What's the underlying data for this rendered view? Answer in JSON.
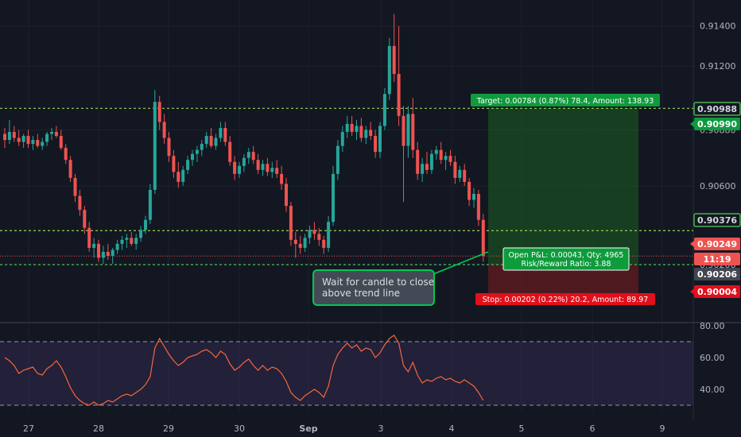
{
  "chart_data": {
    "type": "candlestick",
    "price_axis": {
      "range": [
        0.8992,
        0.9153
      ],
      "ticks": [
        "0.91400",
        "0.91200",
        "0.90880",
        "0.90600",
        "0.90206"
      ],
      "tick_values": [
        0.914,
        0.912,
        0.9088,
        0.906,
        0.90206
      ]
    },
    "x_axis": {
      "labels": [
        "27",
        "28",
        "29",
        "30",
        "Sep",
        "3",
        "4",
        "5",
        "6",
        "9"
      ]
    },
    "price_tags": [
      {
        "label": "0.90988",
        "value": 0.90988,
        "style": "outline",
        "color": "#4caf50"
      },
      {
        "label": "0.90990",
        "value": 0.9099,
        "style": "solid",
        "color": "#0e9b3c"
      },
      {
        "label": "0.90376",
        "value": 0.90376,
        "style": "outline",
        "color": "#4caf50"
      },
      {
        "label": "0.90249",
        "value": 0.90249,
        "style": "solid",
        "color": "#ef5350"
      },
      {
        "label": "11:19",
        "value": 0.9017,
        "style": "solid",
        "color": "#ef5350"
      },
      {
        "label": "0.90206",
        "value": 0.90206,
        "style": "solid",
        "color": "#434651"
      },
      {
        "label": "0.90004",
        "value": 0.90004,
        "style": "solid",
        "color": "#e0101c"
      }
    ],
    "levels": [
      {
        "value": 0.90988,
        "color": "#8bc34a"
      },
      {
        "value": 0.90376,
        "color": "#8bc34a"
      },
      {
        "value": 0.90206,
        "color": "#4caf50"
      }
    ],
    "last_price_value": 0.90249,
    "position": {
      "entry": 0.90206,
      "target": 0.9099,
      "stop": 0.90004,
      "target_label": "Target: 0.00784 (0.87%) 78.4, Amount: 138.93",
      "stop_label": "Stop: 0.00202 (0.22%) 20.2, Amount: 89.97",
      "pnl_label": "Open P&L: 0.00043, Qty: 4965",
      "rr_label": "Risk/Reward Ratio: 3.88"
    },
    "annotation": {
      "line1": "Wait for candle to close",
      "line2": "above trend line"
    },
    "candles": [
      [
        0.9086,
        0.9089,
        0.9079,
        0.9083
      ],
      [
        0.9083,
        0.9093,
        0.9081,
        0.9087
      ],
      [
        0.9087,
        0.909,
        0.9082,
        0.9084
      ],
      [
        0.9084,
        0.9088,
        0.908,
        0.9082
      ],
      [
        0.9082,
        0.9086,
        0.9079,
        0.9085
      ],
      [
        0.9085,
        0.9088,
        0.9079,
        0.9081
      ],
      [
        0.9081,
        0.9085,
        0.9078,
        0.9083
      ],
      [
        0.9083,
        0.9086,
        0.9079,
        0.908
      ],
      [
        0.908,
        0.9084,
        0.9078,
        0.9082
      ],
      [
        0.9082,
        0.9087,
        0.908,
        0.9086
      ],
      [
        0.9086,
        0.9089,
        0.9083,
        0.9087
      ],
      [
        0.9087,
        0.909,
        0.9084,
        0.9085
      ],
      [
        0.9085,
        0.9088,
        0.9078,
        0.9079
      ],
      [
        0.9079,
        0.9081,
        0.9071,
        0.9073
      ],
      [
        0.9073,
        0.9075,
        0.9062,
        0.9064
      ],
      [
        0.9064,
        0.9066,
        0.9052,
        0.9055
      ],
      [
        0.9055,
        0.9058,
        0.9045,
        0.9048
      ],
      [
        0.9048,
        0.905,
        0.9036,
        0.9039
      ],
      [
        0.9039,
        0.9042,
        0.9027,
        0.9029
      ],
      [
        0.9029,
        0.9034,
        0.9024,
        0.9031
      ],
      [
        0.9031,
        0.9033,
        0.9022,
        0.9024
      ],
      [
        0.9024,
        0.903,
        0.9021,
        0.9027
      ],
      [
        0.9027,
        0.9031,
        0.9023,
        0.9025
      ],
      [
        0.9025,
        0.9029,
        0.9021,
        0.9028
      ],
      [
        0.9028,
        0.9033,
        0.9026,
        0.9031
      ],
      [
        0.9031,
        0.9035,
        0.9028,
        0.9033
      ],
      [
        0.9033,
        0.9036,
        0.9029,
        0.9034
      ],
      [
        0.9034,
        0.9037,
        0.903,
        0.9031
      ],
      [
        0.9031,
        0.9036,
        0.9028,
        0.9034
      ],
      [
        0.9034,
        0.904,
        0.9032,
        0.9038
      ],
      [
        0.9038,
        0.9045,
        0.9036,
        0.9043
      ],
      [
        0.9043,
        0.9061,
        0.9041,
        0.9058
      ],
      [
        0.9058,
        0.9108,
        0.9056,
        0.9102
      ],
      [
        0.9102,
        0.9105,
        0.9088,
        0.9092
      ],
      [
        0.9092,
        0.9096,
        0.9081,
        0.9084
      ],
      [
        0.9084,
        0.9087,
        0.9072,
        0.9075
      ],
      [
        0.9075,
        0.9078,
        0.9064,
        0.9067
      ],
      [
        0.9067,
        0.9072,
        0.9059,
        0.9062
      ],
      [
        0.9062,
        0.907,
        0.906,
        0.9068
      ],
      [
        0.9068,
        0.9075,
        0.9066,
        0.9073
      ],
      [
        0.9073,
        0.9078,
        0.907,
        0.9076
      ],
      [
        0.9076,
        0.908,
        0.9072,
        0.9078
      ],
      [
        0.9078,
        0.9083,
        0.9075,
        0.9081
      ],
      [
        0.9081,
        0.9087,
        0.9079,
        0.9085
      ],
      [
        0.9085,
        0.9089,
        0.9079,
        0.908
      ],
      [
        0.908,
        0.9086,
        0.9078,
        0.9084
      ],
      [
        0.9084,
        0.9092,
        0.9082,
        0.9089
      ],
      [
        0.9089,
        0.9092,
        0.908,
        0.9082
      ],
      [
        0.9082,
        0.9085,
        0.907,
        0.9072
      ],
      [
        0.9072,
        0.9075,
        0.9063,
        0.9066
      ],
      [
        0.9066,
        0.9072,
        0.9064,
        0.907
      ],
      [
        0.907,
        0.9076,
        0.9067,
        0.9074
      ],
      [
        0.9074,
        0.9079,
        0.9071,
        0.9077
      ],
      [
        0.9077,
        0.908,
        0.9071,
        0.9073
      ],
      [
        0.9073,
        0.9076,
        0.9066,
        0.9068
      ],
      [
        0.9068,
        0.9073,
        0.9065,
        0.9071
      ],
      [
        0.9071,
        0.9074,
        0.9065,
        0.9067
      ],
      [
        0.9067,
        0.9072,
        0.9064,
        0.9069
      ],
      [
        0.9069,
        0.9073,
        0.9064,
        0.9066
      ],
      [
        0.9066,
        0.907,
        0.9058,
        0.9061
      ],
      [
        0.9061,
        0.9064,
        0.9047,
        0.905
      ],
      [
        0.905,
        0.9052,
        0.903,
        0.9033
      ],
      [
        0.9033,
        0.9037,
        0.9024,
        0.9031
      ],
      [
        0.9031,
        0.9035,
        0.9026,
        0.9029
      ],
      [
        0.9029,
        0.9036,
        0.9027,
        0.9034
      ],
      [
        0.9034,
        0.904,
        0.9031,
        0.9038
      ],
      [
        0.9038,
        0.9042,
        0.9033,
        0.9036
      ],
      [
        0.9036,
        0.9039,
        0.903,
        0.9033
      ],
      [
        0.9033,
        0.9035,
        0.9026,
        0.9029
      ],
      [
        0.9029,
        0.9045,
        0.9027,
        0.9042
      ],
      [
        0.9042,
        0.907,
        0.904,
        0.9066
      ],
      [
        0.9066,
        0.9083,
        0.9063,
        0.908
      ],
      [
        0.908,
        0.909,
        0.9077,
        0.9087
      ],
      [
        0.9087,
        0.9095,
        0.9084,
        0.9091
      ],
      [
        0.9091,
        0.9095,
        0.9085,
        0.9087
      ],
      [
        0.9087,
        0.9093,
        0.9083,
        0.909
      ],
      [
        0.909,
        0.9094,
        0.9082,
        0.9084
      ],
      [
        0.9084,
        0.909,
        0.9081,
        0.9088
      ],
      [
        0.9088,
        0.9092,
        0.9083,
        0.9085
      ],
      [
        0.9085,
        0.9088,
        0.9074,
        0.9077
      ],
      [
        0.9077,
        0.9092,
        0.9074,
        0.909
      ],
      [
        0.909,
        0.9109,
        0.9088,
        0.9106
      ],
      [
        0.9106,
        0.9134,
        0.9103,
        0.913
      ],
      [
        0.913,
        0.9146,
        0.9112,
        0.9116
      ],
      [
        0.9116,
        0.914,
        0.909,
        0.9095
      ],
      [
        0.9095,
        0.91,
        0.9052,
        0.908
      ],
      [
        0.908,
        0.91,
        0.9074,
        0.9096
      ],
      [
        0.9096,
        0.9104,
        0.9074,
        0.9078
      ],
      [
        0.9078,
        0.9082,
        0.9063,
        0.9066
      ],
      [
        0.9066,
        0.9074,
        0.9062,
        0.9071
      ],
      [
        0.9071,
        0.9077,
        0.9066,
        0.9068
      ],
      [
        0.9068,
        0.9078,
        0.9066,
        0.9076
      ],
      [
        0.9076,
        0.908,
        0.9073,
        0.9078
      ],
      [
        0.9078,
        0.9082,
        0.9071,
        0.9073
      ],
      [
        0.9073,
        0.9077,
        0.9068,
        0.9075
      ],
      [
        0.9075,
        0.9078,
        0.907,
        0.9072
      ],
      [
        0.9072,
        0.9075,
        0.9061,
        0.9064
      ],
      [
        0.9064,
        0.907,
        0.9062,
        0.9068
      ],
      [
        0.9068,
        0.9071,
        0.906,
        0.9062
      ],
      [
        0.9062,
        0.9064,
        0.905,
        0.9053
      ],
      [
        0.9053,
        0.9059,
        0.9049,
        0.9056
      ],
      [
        0.9056,
        0.9058,
        0.904,
        0.9043
      ],
      [
        0.9043,
        0.9046,
        0.9022,
        0.9025
      ]
    ],
    "rsi": {
      "ticks": [
        "80.00",
        "60.00",
        "40.00"
      ],
      "tick_values": [
        80,
        60,
        40
      ],
      "range": [
        25,
        81
      ],
      "bands": [
        30,
        70
      ],
      "values": [
        60,
        58,
        55,
        50,
        52,
        53,
        54,
        50,
        49,
        53,
        55,
        58,
        54,
        48,
        41,
        36,
        33,
        31,
        30,
        32,
        30,
        31,
        33,
        32,
        34,
        36,
        37,
        36,
        38,
        40,
        43,
        48,
        66,
        72,
        67,
        62,
        58,
        55,
        57,
        60,
        61,
        62,
        64,
        65,
        63,
        60,
        64,
        62,
        56,
        52,
        54,
        57,
        59,
        55,
        52,
        55,
        52,
        54,
        53,
        50,
        45,
        38,
        35,
        33,
        36,
        38,
        40,
        38,
        35,
        42,
        55,
        62,
        66,
        69,
        66,
        68,
        64,
        66,
        65,
        60,
        63,
        68,
        72,
        74,
        69,
        55,
        51,
        57,
        49,
        44,
        46,
        45,
        47,
        48,
        46,
        47,
        45,
        44,
        46,
        44,
        42,
        38,
        33
      ]
    }
  }
}
